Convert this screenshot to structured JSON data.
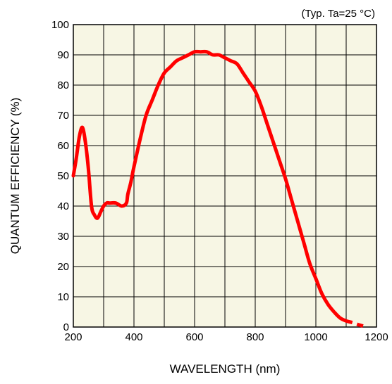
{
  "chart_data": {
    "type": "line",
    "title": "",
    "annotation": "(Typ. Ta=25 °C)",
    "xlabel": "WAVELENGTH (nm)",
    "ylabel": "QUANTUM EFFICIENCY (%)",
    "xlim": [
      200,
      1200
    ],
    "ylim": [
      0,
      100
    ],
    "x_ticks": [
      200,
      400,
      600,
      800,
      1000,
      1200
    ],
    "y_ticks": [
      0,
      10,
      20,
      30,
      40,
      50,
      60,
      70,
      80,
      90,
      100
    ],
    "grid": true,
    "plot_background": "#f7f6e4",
    "line_color": "#ff0000",
    "series": [
      {
        "x": [
          200,
          210,
          220,
          230,
          240,
          250,
          260,
          270,
          280,
          290,
          300,
          310,
          320,
          340,
          360,
          375,
          380,
          390,
          400,
          420,
          440,
          460,
          480,
          500,
          520,
          540,
          560,
          580,
          600,
          620,
          640,
          660,
          680,
          700,
          720,
          740,
          760,
          780,
          800,
          820,
          840,
          860,
          880,
          900,
          920,
          940,
          960,
          980,
          1000,
          1020,
          1040,
          1060,
          1080,
          1100
        ],
        "y": [
          50,
          56,
          63,
          66,
          61,
          52,
          40,
          37,
          36,
          38,
          40,
          41,
          41,
          41,
          40,
          41,
          44,
          48,
          53,
          62,
          70,
          75,
          80,
          84,
          86,
          88,
          89,
          90,
          91,
          91,
          91,
          90,
          90,
          89,
          88,
          87,
          84,
          81,
          78,
          73,
          67,
          61,
          55,
          49,
          42,
          35,
          28,
          21,
          16,
          11,
          7.5,
          5,
          3,
          2
        ]
      },
      {
        "dashed": true,
        "x": [
          1100,
          1120,
          1140,
          1160
        ],
        "y": [
          2,
          1.5,
          0.8,
          0.2
        ]
      }
    ]
  }
}
